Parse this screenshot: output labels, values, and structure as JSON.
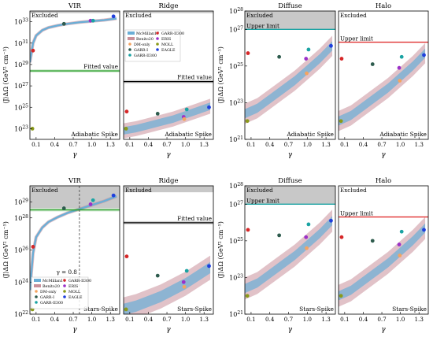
{
  "figure": {
    "ylabel": "⟨J⟩ΔΩ (GeV² cm⁻⁵)",
    "xlabel": "γ",
    "x_ticks": [
      "0.1",
      "0.4",
      "0.7",
      "1.0",
      "1.3"
    ],
    "xlim": [
      0.0,
      1.45
    ],
    "legend": {
      "bands": [
        {
          "label": "McMillan17",
          "color": "#6aaed6"
        },
        {
          "label": "Benito20",
          "color": "#c9909a"
        }
      ],
      "markers": [
        {
          "label": "DM-only",
          "color": "#f4a460"
        },
        {
          "label": "GARR-I",
          "color": "#2e5c4e"
        },
        {
          "label": "GARR-II300",
          "color": "#1aa3a3"
        },
        {
          "label": "GARR-II300",
          "color": "#d62728"
        },
        {
          "label": "ERIS",
          "color": "#9b30c8"
        },
        {
          "label": "MOLL",
          "color": "#8a9a1a"
        },
        {
          "label": "EAGLE",
          "color": "#1f3fdd"
        }
      ]
    }
  },
  "chart_data": [
    {
      "type": "line",
      "panel": "vir-adiabatic",
      "title": "VIR",
      "region_label": "Excluded",
      "spike_label": "Adiabatic Spike",
      "fitted_label": "Fitted value",
      "yscale": "log",
      "ylim_exp": [
        22,
        34
      ],
      "y_tick_exps": [
        23,
        25,
        27,
        29,
        31,
        33
      ],
      "excluded_above_exp": 33.8,
      "fitted_value_exp": 28.4,
      "fitted_color": "#2ca02c",
      "band_curve": {
        "x": [
          0.0,
          0.05,
          0.1,
          0.2,
          0.3,
          0.45,
          0.6,
          0.8,
          1.0,
          1.2,
          1.4
        ],
        "y_exp": [
          29.2,
          31.0,
          31.7,
          32.2,
          32.45,
          32.65,
          32.8,
          32.95,
          33.05,
          33.15,
          33.3
        ]
      },
      "points": [
        {
          "x": 0.04,
          "y_exp": 23.0,
          "color": "#8a9a1a"
        },
        {
          "x": 0.05,
          "y_exp": 30.3,
          "color": "#d62728"
        },
        {
          "x": 0.55,
          "y_exp": 32.8,
          "color": "#2e5c4e"
        },
        {
          "x": 0.98,
          "y_exp": 33.1,
          "color": "#9b30c8"
        },
        {
          "x": 1.02,
          "y_exp": 33.1,
          "color": "#1aa3a3"
        },
        {
          "x": 1.35,
          "y_exp": 33.5,
          "color": "#1f3fdd"
        }
      ]
    },
    {
      "type": "area",
      "panel": "ridge-adiabatic",
      "title": "Ridge",
      "region_label": "Excluded",
      "spike_label": "Adiabatic Spike",
      "fitted_label": "Fitted value",
      "yscale": "log",
      "ylim_exp": [
        22,
        34
      ],
      "excluded_above_exp": 33.8,
      "fitted_value_exp": 27.4,
      "fitted_color": "#000000",
      "band_curve": {
        "x": [
          0.0,
          0.2,
          0.4,
          0.6,
          0.8,
          1.0,
          1.2,
          1.4
        ],
        "y_exp": [
          22.8,
          23.0,
          23.3,
          23.6,
          23.9,
          24.3,
          24.7,
          25.1
        ],
        "blue_halfwidth_exp": 0.35,
        "pink_halfwidth_exp": 0.7
      },
      "points": [
        {
          "x": 0.04,
          "y_exp": 23.0,
          "color": "#8a9a1a"
        },
        {
          "x": 0.05,
          "y_exp": 24.6,
          "color": "#d62728"
        },
        {
          "x": 0.55,
          "y_exp": 24.4,
          "color": "#2e5c4e"
        },
        {
          "x": 0.97,
          "y_exp": 24.1,
          "color": "#9b30c8"
        },
        {
          "x": 0.98,
          "y_exp": 23.9,
          "color": "#f4a460"
        },
        {
          "x": 1.02,
          "y_exp": 24.8,
          "color": "#1aa3a3"
        },
        {
          "x": 1.38,
          "y_exp": 25.0,
          "color": "#1f3fdd"
        }
      ]
    },
    {
      "type": "area",
      "panel": "diffuse-adiabatic",
      "title": "Diffuse",
      "region_label": "Excluded",
      "limit_label": "Upper limit",
      "spike_label": "Adiabatic Spike",
      "yscale": "log",
      "ylim_exp": [
        21,
        28
      ],
      "y_tick_exps": [
        21,
        23,
        25,
        27,
        28
      ],
      "excluded_above_exp": 27.0,
      "upper_limit_exp": 27.0,
      "limit_color": "#1aa3a3",
      "band_curve": {
        "x": [
          0.0,
          0.2,
          0.4,
          0.6,
          0.8,
          1.0,
          1.2,
          1.4
        ],
        "y_exp": [
          22.4,
          22.7,
          23.2,
          23.7,
          24.2,
          24.8,
          25.4,
          26.1
        ],
        "blue_halfwidth_exp": 0.25,
        "pink_halfwidth_exp": 0.55
      },
      "points": [
        {
          "x": 0.04,
          "y_exp": 22.0,
          "color": "#8a9a1a"
        },
        {
          "x": 0.05,
          "y_exp": 25.7,
          "color": "#d62728"
        },
        {
          "x": 0.55,
          "y_exp": 25.5,
          "color": "#2e5c4e"
        },
        {
          "x": 0.98,
          "y_exp": 25.4,
          "color": "#9b30c8"
        },
        {
          "x": 0.99,
          "y_exp": 24.6,
          "color": "#f4a460"
        },
        {
          "x": 1.02,
          "y_exp": 25.9,
          "color": "#1aa3a3"
        },
        {
          "x": 1.38,
          "y_exp": 26.1,
          "color": "#1f3fdd"
        }
      ]
    },
    {
      "type": "area",
      "panel": "halo-adiabatic",
      "title": "Halo",
      "region_label": "Excluded",
      "limit_label": "Upper limit",
      "spike_label": "Adiabatic Spike",
      "yscale": "log",
      "ylim_exp": [
        21,
        28
      ],
      "excluded_above_exp": 28.0,
      "upper_limit_exp": 26.3,
      "limit_color": "#e03030",
      "band_curve": {
        "x": [
          0.0,
          0.2,
          0.4,
          0.6,
          0.8,
          1.0,
          1.2,
          1.4
        ],
        "y_exp": [
          22.0,
          22.3,
          22.8,
          23.3,
          23.8,
          24.4,
          25.0,
          25.7
        ],
        "blue_halfwidth_exp": 0.25,
        "pink_halfwidth_exp": 0.55
      },
      "points": [
        {
          "x": 0.04,
          "y_exp": 22.0,
          "color": "#8a9a1a"
        },
        {
          "x": 0.05,
          "y_exp": 25.4,
          "color": "#d62728"
        },
        {
          "x": 0.55,
          "y_exp": 25.1,
          "color": "#2e5c4e"
        },
        {
          "x": 0.98,
          "y_exp": 24.9,
          "color": "#9b30c8"
        },
        {
          "x": 0.99,
          "y_exp": 24.2,
          "color": "#f4a460"
        },
        {
          "x": 1.02,
          "y_exp": 25.5,
          "color": "#1aa3a3"
        },
        {
          "x": 1.38,
          "y_exp": 25.6,
          "color": "#1f3fdd"
        }
      ]
    },
    {
      "type": "line",
      "panel": "vir-stars",
      "title": "VIR",
      "region_label": "Excluded",
      "spike_label": "Stars-Spike",
      "gamma_label": "γ = 0.8",
      "gamma_line_x": 0.8,
      "yscale": "log",
      "ylim_exp": [
        22,
        30
      ],
      "y_tick_exps": [
        22,
        24,
        26,
        28,
        29
      ],
      "excluded_above_exp": 28.6,
      "fitted_value_exp": 28.5,
      "fitted_color": "#2ca02c",
      "band_curve": {
        "x": [
          0.0,
          0.05,
          0.1,
          0.2,
          0.3,
          0.45,
          0.6,
          0.8,
          1.0,
          1.2,
          1.4
        ],
        "y_exp": [
          23.5,
          25.8,
          26.8,
          27.4,
          27.75,
          28.05,
          28.3,
          28.55,
          28.8,
          29.05,
          29.35
        ]
      },
      "points": [
        {
          "x": 0.04,
          "y_exp": 22.3,
          "color": "#8a9a1a"
        },
        {
          "x": 0.05,
          "y_exp": 26.2,
          "color": "#d62728"
        },
        {
          "x": 0.55,
          "y_exp": 28.6,
          "color": "#2e5c4e"
        },
        {
          "x": 0.98,
          "y_exp": 28.85,
          "color": "#9b30c8"
        },
        {
          "x": 1.02,
          "y_exp": 29.1,
          "color": "#1aa3a3"
        },
        {
          "x": 1.35,
          "y_exp": 29.4,
          "color": "#1f3fdd"
        }
      ]
    },
    {
      "type": "area",
      "panel": "ridge-stars",
      "title": "Ridge",
      "region_label": "Excluded",
      "spike_label": "Stars-Spike",
      "fitted_label": "Fitted value",
      "yscale": "log",
      "ylim_exp": [
        22,
        30
      ],
      "excluded_above_exp": 29.6,
      "fitted_value_exp": 27.7,
      "fitted_color": "#000000",
      "band_curve": {
        "x": [
          0.0,
          0.2,
          0.4,
          0.6,
          0.8,
          1.0,
          1.2,
          1.4
        ],
        "y_exp": [
          22.3,
          22.5,
          22.8,
          23.1,
          23.5,
          23.9,
          24.4,
          24.9
        ],
        "blue_halfwidth_exp": 0.35,
        "pink_halfwidth_exp": 0.75
      },
      "points": [
        {
          "x": 0.04,
          "y_exp": 22.3,
          "color": "#8a9a1a"
        },
        {
          "x": 0.05,
          "y_exp": 25.6,
          "color": "#d62728"
        },
        {
          "x": 0.55,
          "y_exp": 24.4,
          "color": "#2e5c4e"
        },
        {
          "x": 0.97,
          "y_exp": 24.0,
          "color": "#9b30c8"
        },
        {
          "x": 0.98,
          "y_exp": 23.7,
          "color": "#f4a460"
        },
        {
          "x": 1.02,
          "y_exp": 24.7,
          "color": "#1aa3a3"
        },
        {
          "x": 1.38,
          "y_exp": 25.0,
          "color": "#1f3fdd"
        }
      ]
    },
    {
      "type": "area",
      "panel": "diffuse-stars",
      "title": "Diffuse",
      "region_label": "Excluded",
      "limit_label": "Upper limit",
      "spike_label": "Stars-Spike",
      "yscale": "log",
      "ylim_exp": [
        21,
        28
      ],
      "y_tick_exps": [
        21,
        23,
        25,
        27,
        28
      ],
      "excluded_above_exp": 27.0,
      "upper_limit_exp": 27.0,
      "limit_color": "#1aa3a3",
      "band_curve": {
        "x": [
          0.0,
          0.2,
          0.4,
          0.6,
          0.8,
          1.0,
          1.2,
          1.4
        ],
        "y_exp": [
          22.4,
          22.7,
          23.2,
          23.7,
          24.2,
          24.8,
          25.4,
          26.1
        ],
        "blue_halfwidth_exp": 0.25,
        "pink_halfwidth_exp": 0.6
      },
      "points": [
        {
          "x": 0.04,
          "y_exp": 22.0,
          "color": "#8a9a1a"
        },
        {
          "x": 0.05,
          "y_exp": 25.6,
          "color": "#d62728"
        },
        {
          "x": 0.55,
          "y_exp": 25.3,
          "color": "#2e5c4e"
        },
        {
          "x": 0.98,
          "y_exp": 25.2,
          "color": "#9b30c8"
        },
        {
          "x": 0.99,
          "y_exp": 24.6,
          "color": "#f4a460"
        },
        {
          "x": 1.02,
          "y_exp": 25.9,
          "color": "#1aa3a3"
        },
        {
          "x": 1.38,
          "y_exp": 26.1,
          "color": "#1f3fdd"
        }
      ]
    },
    {
      "type": "area",
      "panel": "halo-stars",
      "title": "Halo",
      "region_label": "Excluded",
      "limit_label": "Upper limit",
      "spike_label": "Stars-Spike",
      "yscale": "log",
      "ylim_exp": [
        21,
        28
      ],
      "excluded_above_exp": 28.0,
      "upper_limit_exp": 26.3,
      "limit_color": "#e03030",
      "band_curve": {
        "x": [
          0.0,
          0.2,
          0.4,
          0.6,
          0.8,
          1.0,
          1.2,
          1.4
        ],
        "y_exp": [
          22.0,
          22.3,
          22.8,
          23.3,
          23.8,
          24.4,
          25.0,
          25.7
        ],
        "blue_halfwidth_exp": 0.25,
        "pink_halfwidth_exp": 0.6
      },
      "points": [
        {
          "x": 0.04,
          "y_exp": 22.0,
          "color": "#8a9a1a"
        },
        {
          "x": 0.05,
          "y_exp": 25.2,
          "color": "#d62728"
        },
        {
          "x": 0.55,
          "y_exp": 25.0,
          "color": "#2e5c4e"
        },
        {
          "x": 0.98,
          "y_exp": 24.8,
          "color": "#9b30c8"
        },
        {
          "x": 0.99,
          "y_exp": 24.2,
          "color": "#f4a460"
        },
        {
          "x": 1.02,
          "y_exp": 25.5,
          "color": "#1aa3a3"
        },
        {
          "x": 1.38,
          "y_exp": 25.6,
          "color": "#1f3fdd"
        }
      ]
    }
  ]
}
